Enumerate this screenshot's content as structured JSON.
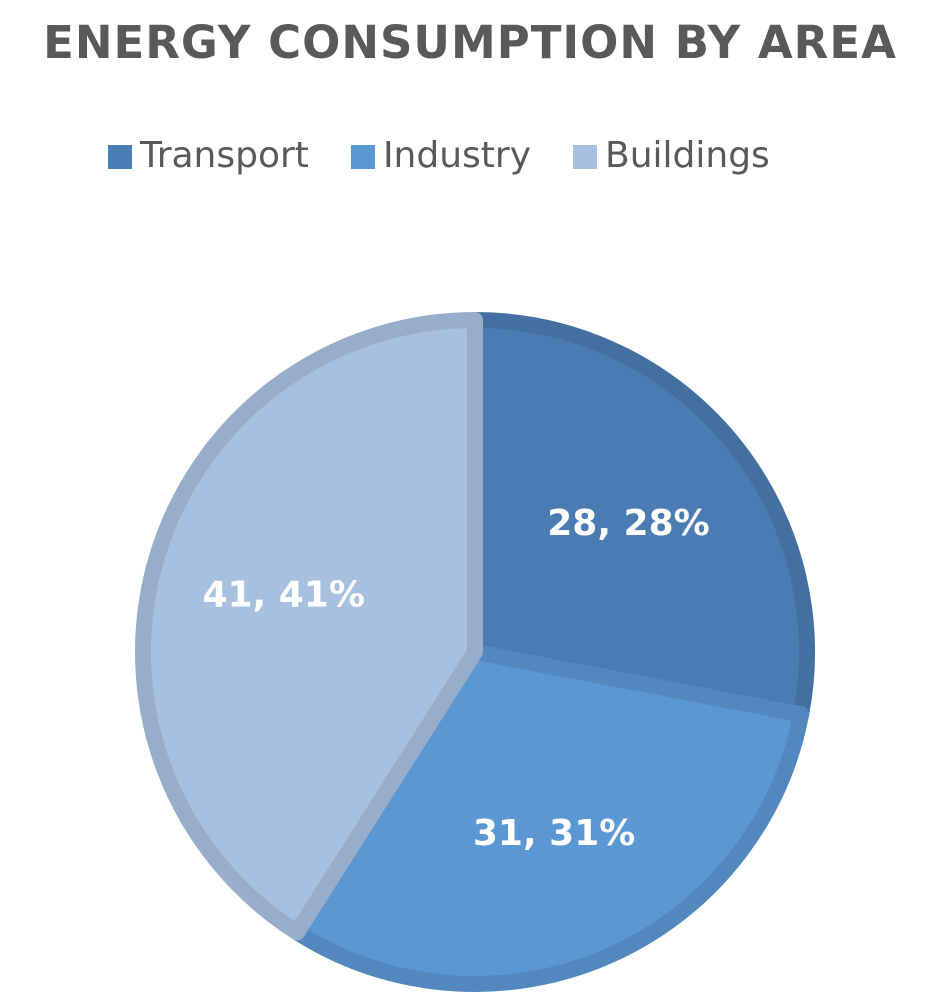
{
  "chart_data": {
    "type": "pie",
    "title": "ENERGY CONSUMPTION BY AREA",
    "categories": [
      "Transport",
      "Industry",
      "Buildings"
    ],
    "values": [
      28,
      31,
      41
    ],
    "value_labels": [
      "28, 28%",
      "31, 31%",
      "41, 41%"
    ],
    "colors": [
      "#4a7cb3",
      "#5b97d3",
      "#a8c0e0"
    ],
    "legend": "top"
  }
}
